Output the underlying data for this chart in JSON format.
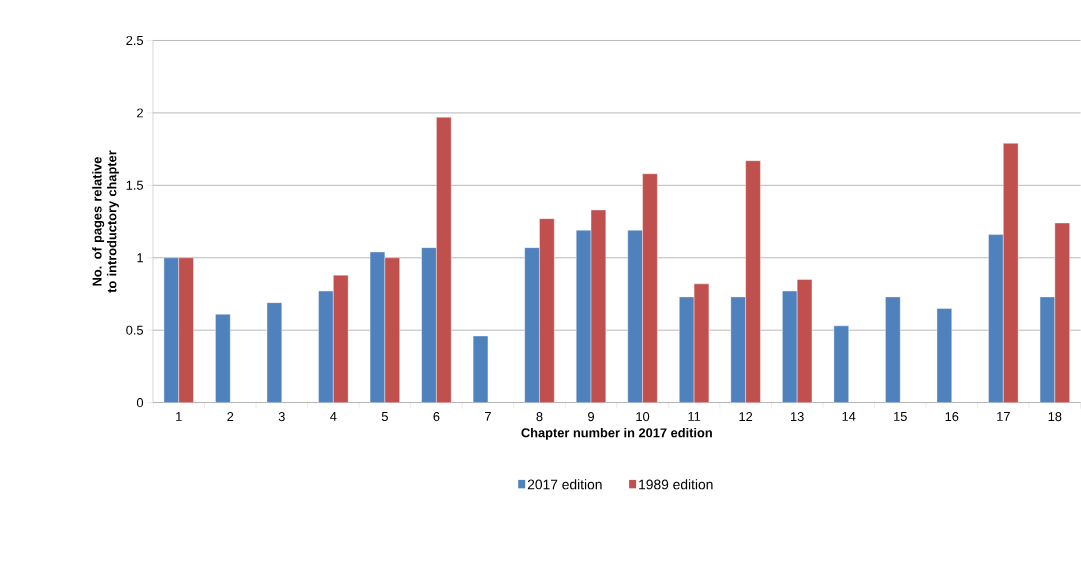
{
  "chart_data": {
    "type": "bar",
    "xlabel": "Chapter number in 2017 edition",
    "ylabel": "No. of pages relative to introductory chapter",
    "categories": [
      "1",
      "2",
      "3",
      "4",
      "5",
      "6",
      "7",
      "8",
      "9",
      "10",
      "11",
      "12",
      "13",
      "14",
      "15",
      "16",
      "17",
      "18"
    ],
    "series": [
      {
        "name": "2017 edition",
        "color": "#4f81bd",
        "values": [
          1.0,
          0.61,
          0.69,
          0.77,
          1.04,
          1.07,
          0.46,
          1.07,
          1.19,
          1.19,
          0.73,
          0.73,
          0.77,
          0.53,
          0.73,
          0.65,
          1.16,
          0.73
        ]
      },
      {
        "name": "1989 edition",
        "color": "#c0504d",
        "values": [
          1.0,
          null,
          null,
          0.88,
          1.0,
          1.97,
          null,
          1.27,
          1.33,
          1.58,
          0.82,
          1.67,
          0.85,
          null,
          null,
          null,
          1.79,
          1.24
        ]
      }
    ],
    "ylim": [
      0,
      2.5
    ],
    "yticks": [
      0,
      0.5,
      1,
      1.5,
      2,
      2.5
    ],
    "grid": "y",
    "legend": "bottom"
  }
}
